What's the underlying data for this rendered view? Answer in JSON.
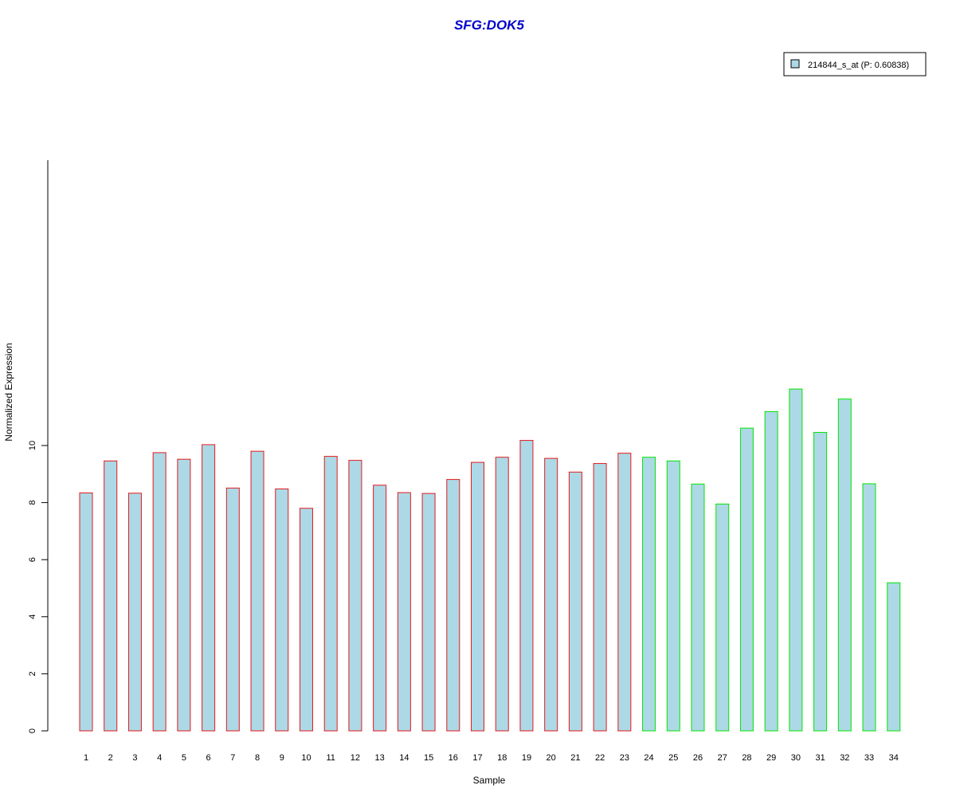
{
  "chart_data": {
    "type": "bar",
    "title": "SFG:DOK5",
    "xlabel": "Sample",
    "ylabel": "Normalized Expression",
    "ylim": [
      0,
      12
    ],
    "yticks": [
      "0",
      "2",
      "4",
      "6",
      "8",
      "10"
    ],
    "categories": [
      "1",
      "2",
      "3",
      "4",
      "5",
      "6",
      "7",
      "8",
      "9",
      "10",
      "11",
      "12",
      "13",
      "14",
      "15",
      "16",
      "17",
      "18",
      "19",
      "20",
      "21",
      "22",
      "23",
      "24",
      "25",
      "26",
      "27",
      "28",
      "29",
      "30",
      "31",
      "32",
      "33",
      "34"
    ],
    "series": [
      {
        "name": "214844_s_at (P: 0.60838)",
        "values": [
          8.34,
          9.46,
          8.33,
          9.75,
          9.52,
          10.03,
          8.51,
          9.8,
          8.48,
          7.8,
          9.62,
          9.48,
          8.61,
          8.35,
          8.32,
          8.81,
          9.41,
          9.59,
          10.18,
          9.55,
          9.07,
          9.37,
          9.73,
          9.59,
          9.46,
          8.65,
          7.95,
          10.61,
          11.19,
          11.98,
          10.46,
          11.63,
          8.66,
          5.19
        ],
        "fill": "#ADD8E6"
      }
    ],
    "group_border_colors": [
      "#e31a1c",
      "#e31a1c",
      "#e31a1c",
      "#e31a1c",
      "#e31a1c",
      "#e31a1c",
      "#e31a1c",
      "#e31a1c",
      "#e31a1c",
      "#e31a1c",
      "#e31a1c",
      "#e31a1c",
      "#e31a1c",
      "#e31a1c",
      "#e31a1c",
      "#e31a1c",
      "#e31a1c",
      "#e31a1c",
      "#e31a1c",
      "#e31a1c",
      "#e31a1c",
      "#e31a1c",
      "#e31a1c",
      "#00e600",
      "#00e600",
      "#00e600",
      "#00e600",
      "#00e600",
      "#00e600",
      "#00e600",
      "#00e600",
      "#00e600",
      "#00e600",
      "#00e600"
    ],
    "title_color": "#0000CC",
    "legend_position": "top-right",
    "grid": false
  }
}
